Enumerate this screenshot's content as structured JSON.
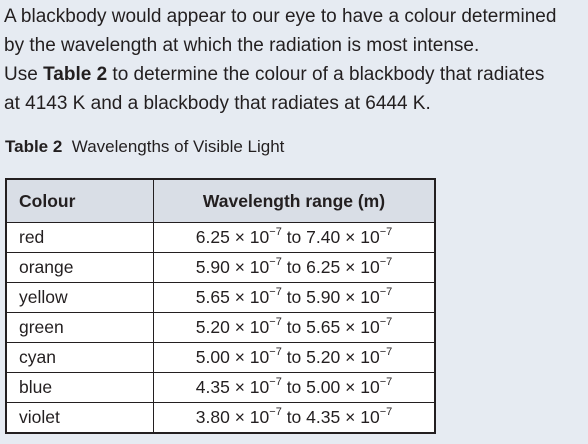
{
  "question": {
    "line1": "A blackbody would appear to our eye to have a colour determined",
    "line2": "by the wavelength at which the radiation is most intense.",
    "line3_pre": "Use ",
    "line3_ref": "Table 2",
    "line3_post": " to determine the colour of a blackbody that radiates",
    "line4": "at 4143 K and a blackbody that radiates at 6444 K."
  },
  "caption": {
    "label": "Table 2",
    "title": "Wavelengths of Visible Light"
  },
  "table": {
    "headers": [
      "Colour",
      "Wavelength range (m)"
    ],
    "rows": [
      {
        "colour": "red",
        "from": "6.25",
        "to": "7.40"
      },
      {
        "colour": "orange",
        "from": "5.90",
        "to": "6.25"
      },
      {
        "colour": "yellow",
        "from": "5.65",
        "to": "5.90"
      },
      {
        "colour": "green",
        "from": "5.20",
        "to": "5.65"
      },
      {
        "colour": "cyan",
        "from": "5.00",
        "to": "5.20"
      },
      {
        "colour": "blue",
        "from": "4.35",
        "to": "5.00"
      },
      {
        "colour": "violet",
        "from": "3.80",
        "to": "4.35"
      }
    ],
    "times_symbol": "×",
    "base": "10",
    "exponent": "−7",
    "connector": "to"
  },
  "colors": {
    "background": "#e6ebf2",
    "text": "#231f20",
    "header_fill": "#d9dee6",
    "cell_fill": "#ffffff"
  }
}
